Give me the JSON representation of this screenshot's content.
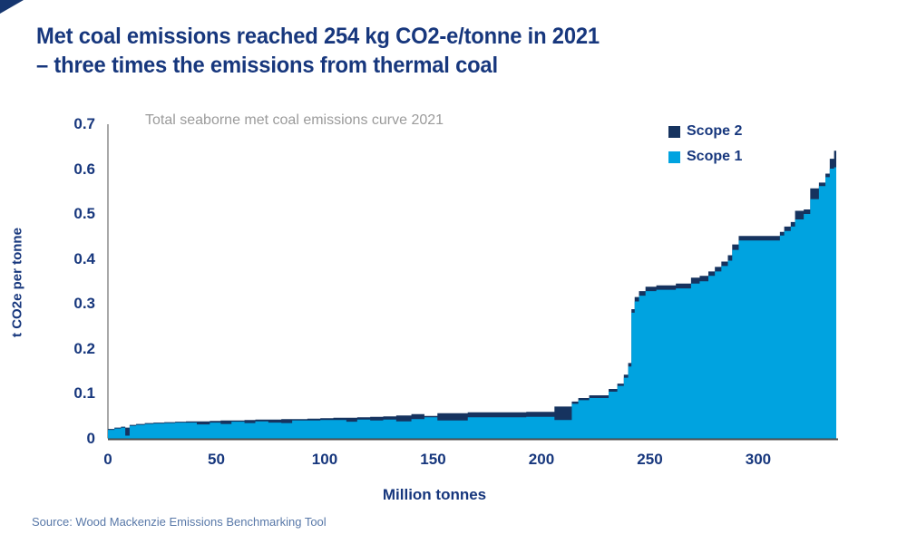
{
  "page": {
    "title_line1": "Met coal emissions reached 254 kg CO2-e/tonne in 2021",
    "title_line2": "– three times the emissions from thermal coal",
    "source": "Source: Wood Mackenzie Emissions Benchmarking Tool"
  },
  "colors": {
    "title_navy": "#17377d",
    "scope2_navy": "#16335f",
    "scope1_blue": "#00a3e0",
    "subtitle_gray": "#9b9b9b",
    "source_blue": "#5878a8",
    "y_axis_line": "#8c8c8c",
    "x_axis_line": "#4a4a4a",
    "corner_triangle": "#16366f"
  },
  "chart_data": {
    "type": "area",
    "subtype": "stacked-step-supply-curve",
    "title": "Total seaborne met coal emissions curve 2021",
    "xlabel": "Million tonnes",
    "ylabel": "t CO2e per tonne",
    "xlim": [
      0,
      336
    ],
    "ylim": [
      0,
      0.7
    ],
    "grid": false,
    "legend_position": "top-right",
    "x_ticks": [
      {
        "v": 0,
        "label": "0"
      },
      {
        "v": 50,
        "label": "50"
      },
      {
        "v": 100,
        "label": "100"
      },
      {
        "v": 150,
        "label": "150"
      },
      {
        "v": 200,
        "label": "200"
      },
      {
        "v": 250,
        "label": "250"
      },
      {
        "v": 300,
        "label": "300"
      }
    ],
    "y_ticks": [
      {
        "v": 0,
        "label": "0"
      },
      {
        "v": 0.1,
        "label": "0.1"
      },
      {
        "v": 0.2,
        "label": "0.2"
      },
      {
        "v": 0.3,
        "label": "0.3"
      },
      {
        "v": 0.4,
        "label": "0.4"
      },
      {
        "v": 0.5,
        "label": "0.5"
      },
      {
        "v": 0.6,
        "label": "0.6"
      },
      {
        "v": 0.7,
        "label": "0.7"
      }
    ],
    "series": [
      {
        "name": "Scope 2",
        "color": "#16335f",
        "role": "top-band"
      },
      {
        "name": "Scope 1",
        "color": "#00a3e0",
        "role": "base"
      }
    ],
    "steps_note": "each step = [start_million_tonnes, scope1_top_tCO2e, scope1_plus_scope2_top_tCO2e]; steps run until the next step's start; x_end closes the last step",
    "x_end": 336,
    "steps": [
      [
        0,
        0.019,
        0.021
      ],
      [
        3,
        0.022,
        0.024
      ],
      [
        6,
        0.024,
        0.026
      ],
      [
        8,
        0.006,
        0.024
      ],
      [
        10,
        0.028,
        0.03
      ],
      [
        13,
        0.03,
        0.032
      ],
      [
        17,
        0.032,
        0.034
      ],
      [
        21,
        0.033,
        0.035
      ],
      [
        26,
        0.034,
        0.036
      ],
      [
        31,
        0.035,
        0.037
      ],
      [
        36,
        0.035,
        0.038
      ],
      [
        41,
        0.031,
        0.038
      ],
      [
        47,
        0.035,
        0.039
      ],
      [
        52,
        0.032,
        0.04
      ],
      [
        57,
        0.037,
        0.04
      ],
      [
        63,
        0.034,
        0.041
      ],
      [
        68,
        0.038,
        0.042
      ],
      [
        74,
        0.035,
        0.042
      ],
      [
        80,
        0.034,
        0.043
      ],
      [
        85,
        0.04,
        0.043
      ],
      [
        92,
        0.04,
        0.044
      ],
      [
        98,
        0.041,
        0.045
      ],
      [
        104,
        0.041,
        0.046
      ],
      [
        110,
        0.037,
        0.046
      ],
      [
        115,
        0.042,
        0.047
      ],
      [
        121,
        0.04,
        0.048
      ],
      [
        127,
        0.042,
        0.049
      ],
      [
        133,
        0.038,
        0.051
      ],
      [
        140,
        0.043,
        0.054
      ],
      [
        146,
        0.047,
        0.05
      ],
      [
        152,
        0.04,
        0.056
      ],
      [
        166,
        0.047,
        0.058
      ],
      [
        180,
        0.047,
        0.058
      ],
      [
        193,
        0.048,
        0.059
      ],
      [
        206,
        0.041,
        0.071
      ],
      [
        214,
        0.077,
        0.082
      ],
      [
        217,
        0.085,
        0.09
      ],
      [
        222,
        0.09,
        0.096
      ],
      [
        231,
        0.104,
        0.11
      ],
      [
        235,
        0.117,
        0.122
      ],
      [
        238,
        0.135,
        0.142
      ],
      [
        240,
        0.16,
        0.168
      ],
      [
        241.5,
        0.28,
        0.288
      ],
      [
        243,
        0.305,
        0.315
      ],
      [
        245,
        0.318,
        0.328
      ],
      [
        248,
        0.328,
        0.338
      ],
      [
        253,
        0.331,
        0.341
      ],
      [
        262,
        0.334,
        0.345
      ],
      [
        269,
        0.345,
        0.358
      ],
      [
        273,
        0.35,
        0.362
      ],
      [
        277,
        0.362,
        0.372
      ],
      [
        280,
        0.372,
        0.382
      ],
      [
        283,
        0.384,
        0.394
      ],
      [
        286,
        0.396,
        0.408
      ],
      [
        288,
        0.42,
        0.432
      ],
      [
        291,
        0.441,
        0.451
      ],
      [
        310,
        0.452,
        0.46
      ],
      [
        312,
        0.462,
        0.472
      ],
      [
        315,
        0.472,
        0.482
      ],
      [
        317,
        0.488,
        0.507
      ],
      [
        321,
        0.5,
        0.51
      ],
      [
        324,
        0.533,
        0.557
      ],
      [
        328,
        0.562,
        0.57
      ],
      [
        331,
        0.582,
        0.59
      ],
      [
        333,
        0.601,
        0.623
      ],
      [
        335,
        0.604,
        0.641
      ]
    ]
  }
}
